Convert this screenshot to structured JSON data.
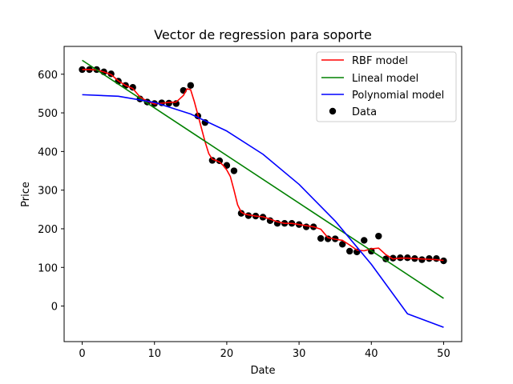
{
  "chart_data": {
    "type": "scatter",
    "title": "Vector de regression para soporte",
    "xlabel": "Date",
    "ylabel": "Price",
    "xlim": [
      -2.5,
      52.5
    ],
    "ylim": [
      -92,
      672
    ],
    "xticks": [
      0,
      10,
      20,
      30,
      40,
      50
    ],
    "yticks": [
      0,
      100,
      200,
      300,
      400,
      500,
      600
    ],
    "grid": false,
    "legend_position": "top-right",
    "legend": [
      "RBF model",
      "Lineal model",
      "Polynomial model",
      "Data"
    ],
    "colors": {
      "rbf": "#ff0000",
      "lineal": "#008000",
      "polynomial": "#0000ff",
      "data": "#000000"
    },
    "scatter": {
      "name": "Data",
      "x": [
        0,
        1,
        2,
        3,
        4,
        5,
        6,
        7,
        8,
        9,
        10,
        11,
        12,
        13,
        14,
        15,
        16,
        17,
        18,
        19,
        20,
        21,
        22,
        23,
        24,
        25,
        26,
        27,
        28,
        29,
        30,
        31,
        32,
        33,
        34,
        35,
        36,
        37,
        38,
        39,
        40,
        41,
        42,
        43,
        44,
        45,
        46,
        47,
        48,
        49,
        50
      ],
      "y": [
        612,
        612,
        612,
        606,
        601,
        582,
        571,
        566,
        536,
        528,
        524,
        526,
        525,
        524,
        558,
        571,
        492,
        475,
        377,
        376,
        364,
        350,
        240,
        234,
        233,
        230,
        221,
        214,
        214,
        214,
        211,
        205,
        205,
        175,
        174,
        174,
        160,
        142,
        140,
        170,
        142,
        181,
        122,
        124,
        125,
        125,
        123,
        120,
        123,
        123,
        117
      ]
    },
    "series": [
      {
        "name": "RBF model",
        "x": [
          0,
          1,
          2,
          3,
          4,
          5,
          6,
          7,
          8,
          9,
          10,
          11,
          12,
          13,
          14,
          14.5,
          15,
          15.5,
          16,
          16.5,
          17,
          17.5,
          18,
          18.5,
          19,
          19.5,
          20,
          20.5,
          21,
          21.5,
          22,
          22.5,
          23,
          24,
          25,
          26,
          27,
          28,
          29,
          30,
          31,
          32,
          33,
          34,
          35,
          36,
          37,
          38,
          39,
          40,
          41,
          42,
          43,
          44,
          45,
          46,
          47,
          48,
          49,
          50
        ],
        "y": [
          612,
          612,
          611,
          606,
          599,
          583,
          571,
          563,
          541,
          530,
          523,
          525,
          527,
          528,
          545,
          562,
          560,
          530,
          495,
          460,
          425,
          395,
          380,
          377,
          373,
          364,
          352,
          335,
          300,
          262,
          243,
          238,
          236,
          233,
          231,
          225,
          218,
          214,
          214,
          211,
          208,
          205,
          199,
          177,
          173,
          170,
          158,
          145,
          143,
          148,
          150,
          133,
          122,
          124,
          124,
          123,
          122,
          121,
          120,
          118
        ]
      },
      {
        "name": "Lineal model",
        "x": [
          0,
          50
        ],
        "y": [
          636,
          20
        ]
      },
      {
        "name": "Polynomial model",
        "x": [
          0,
          5,
          10,
          15,
          20,
          25,
          30,
          35,
          40,
          45,
          50
        ],
        "y": [
          547,
          543,
          527,
          497,
          453,
          393,
          315,
          220,
          108,
          -20,
          -55
        ]
      }
    ]
  }
}
